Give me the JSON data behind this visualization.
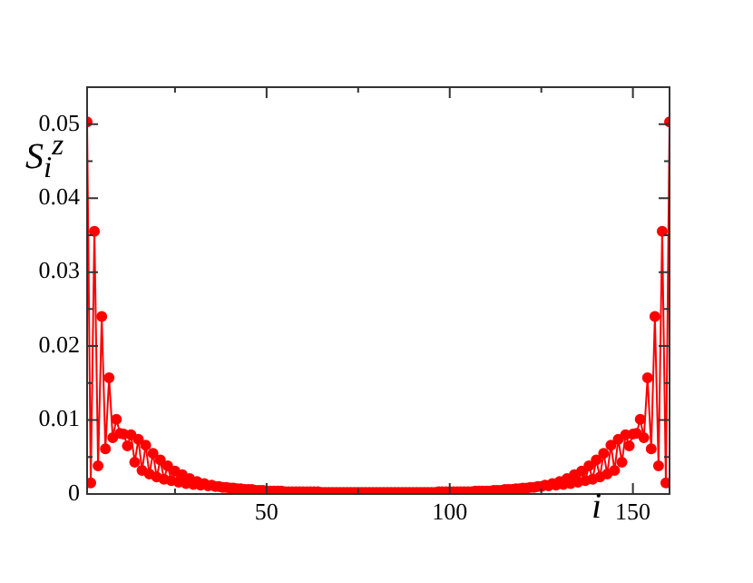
{
  "chart_data": {
    "type": "line",
    "xlabel": "i",
    "ylabel": "S$_{i}$$^{z}$",
    "xlim": [
      1,
      160
    ],
    "ylim": [
      0,
      0.055
    ],
    "xticks": [
      {
        "value": 25,
        "label": null
      },
      50,
      {
        "value": 75,
        "label": null
      },
      100,
      {
        "value": 125,
        "label": null
      },
      150
    ],
    "yticks": [
      0,
      {
        "value": 0.005,
        "label": null
      },
      0.01,
      {
        "value": 0.015,
        "label": null
      },
      0.02,
      {
        "value": 0.025,
        "label": null
      },
      0.03,
      {
        "value": 0.035,
        "label": null
      },
      0.04,
      {
        "value": 0.045,
        "label": null
      },
      0.05
    ],
    "grid": false,
    "marker": "circle",
    "line_style": "solid",
    "x": [
      1,
      2,
      3,
      4,
      5,
      6,
      7,
      8,
      9,
      10,
      11,
      12,
      13,
      14,
      15,
      16,
      17,
      18,
      19,
      20,
      21,
      22,
      23,
      24,
      25,
      26,
      27,
      28,
      29,
      30,
      31,
      32,
      33,
      34,
      35,
      36,
      37,
      38,
      39,
      40,
      41,
      42,
      43,
      44,
      45,
      46,
      47,
      48,
      49,
      50,
      51,
      52,
      53,
      54,
      55,
      56,
      57,
      58,
      59,
      60,
      61,
      62,
      63,
      64,
      65,
      66,
      67,
      68,
      69,
      70,
      71,
      72,
      73,
      74,
      75,
      76,
      77,
      78,
      79,
      80,
      81,
      82,
      83,
      84,
      85,
      86,
      87,
      88,
      89,
      90,
      91,
      92,
      93,
      94,
      95,
      96,
      97,
      98,
      99,
      100,
      101,
      102,
      103,
      104,
      105,
      106,
      107,
      108,
      109,
      110,
      111,
      112,
      113,
      114,
      115,
      116,
      117,
      118,
      119,
      120,
      121,
      122,
      123,
      124,
      125,
      126,
      127,
      128,
      129,
      130,
      131,
      132,
      133,
      134,
      135,
      136,
      137,
      138,
      139,
      140,
      141,
      142,
      143,
      144,
      145,
      146,
      147,
      148,
      149,
      150,
      151,
      152,
      153,
      154,
      155,
      156,
      157,
      158,
      159,
      160
    ],
    "series": [
      {
        "color": "#ff0000",
        "values": [
          0.0503,
          0.0015,
          0.0355,
          0.0038,
          0.024,
          0.0061,
          0.0157,
          0.0076,
          0.0101,
          0.0082,
          0.0081,
          0.0065,
          0.008,
          0.0043,
          0.0074,
          0.0032,
          0.0066,
          0.0027,
          0.0055,
          0.0023,
          0.0046,
          0.002,
          0.0038,
          0.0018,
          0.0031,
          0.0016,
          0.0026,
          0.0014,
          0.0021,
          0.0013,
          0.0017,
          0.0012,
          0.0014,
          0.0011,
          0.0012,
          0.001,
          0.001,
          0.0009,
          0.0009,
          0.0008,
          0.0008,
          0.0007,
          0.0007,
          0.0006,
          0.0006,
          0.0006,
          0.0005,
          0.0005,
          0.0005,
          0.0004,
          0.0004,
          0.0004,
          0.0004,
          0.0004,
          0.0003,
          0.0003,
          0.0003,
          0.0003,
          0.0003,
          0.0003,
          0.0003,
          0.0003,
          0.0003,
          0.0003,
          0.0002,
          0.0002,
          0.0002,
          0.0002,
          0.0002,
          0.0002,
          0.0002,
          0.0002,
          0.0002,
          0.0002,
          0.0002,
          0.0002,
          0.0002,
          0.0002,
          0.0002,
          0.0002,
          0.0002,
          0.0002,
          0.0002,
          0.0002,
          0.0002,
          0.0002,
          0.0002,
          0.0002,
          0.0002,
          0.0002,
          0.0002,
          0.0002,
          0.0002,
          0.0002,
          0.0002,
          0.0002,
          0.0003,
          0.0003,
          0.0003,
          0.0003,
          0.0003,
          0.0003,
          0.0003,
          0.0003,
          0.0003,
          0.0003,
          0.0004,
          0.0004,
          0.0004,
          0.0004,
          0.0004,
          0.0005,
          0.0005,
          0.0005,
          0.0006,
          0.0006,
          0.0006,
          0.0007,
          0.0007,
          0.0008,
          0.0008,
          0.0009,
          0.0009,
          0.001,
          0.001,
          0.0012,
          0.0011,
          0.0014,
          0.0012,
          0.0017,
          0.0013,
          0.0021,
          0.0014,
          0.0026,
          0.0016,
          0.0031,
          0.0018,
          0.0038,
          0.002,
          0.0046,
          0.0023,
          0.0055,
          0.0027,
          0.0066,
          0.0032,
          0.0074,
          0.0043,
          0.008,
          0.0065,
          0.0081,
          0.0082,
          0.0101,
          0.0076,
          0.0157,
          0.0061,
          0.024,
          0.0038,
          0.0355,
          0.0015,
          0.0503
        ]
      }
    ]
  }
}
